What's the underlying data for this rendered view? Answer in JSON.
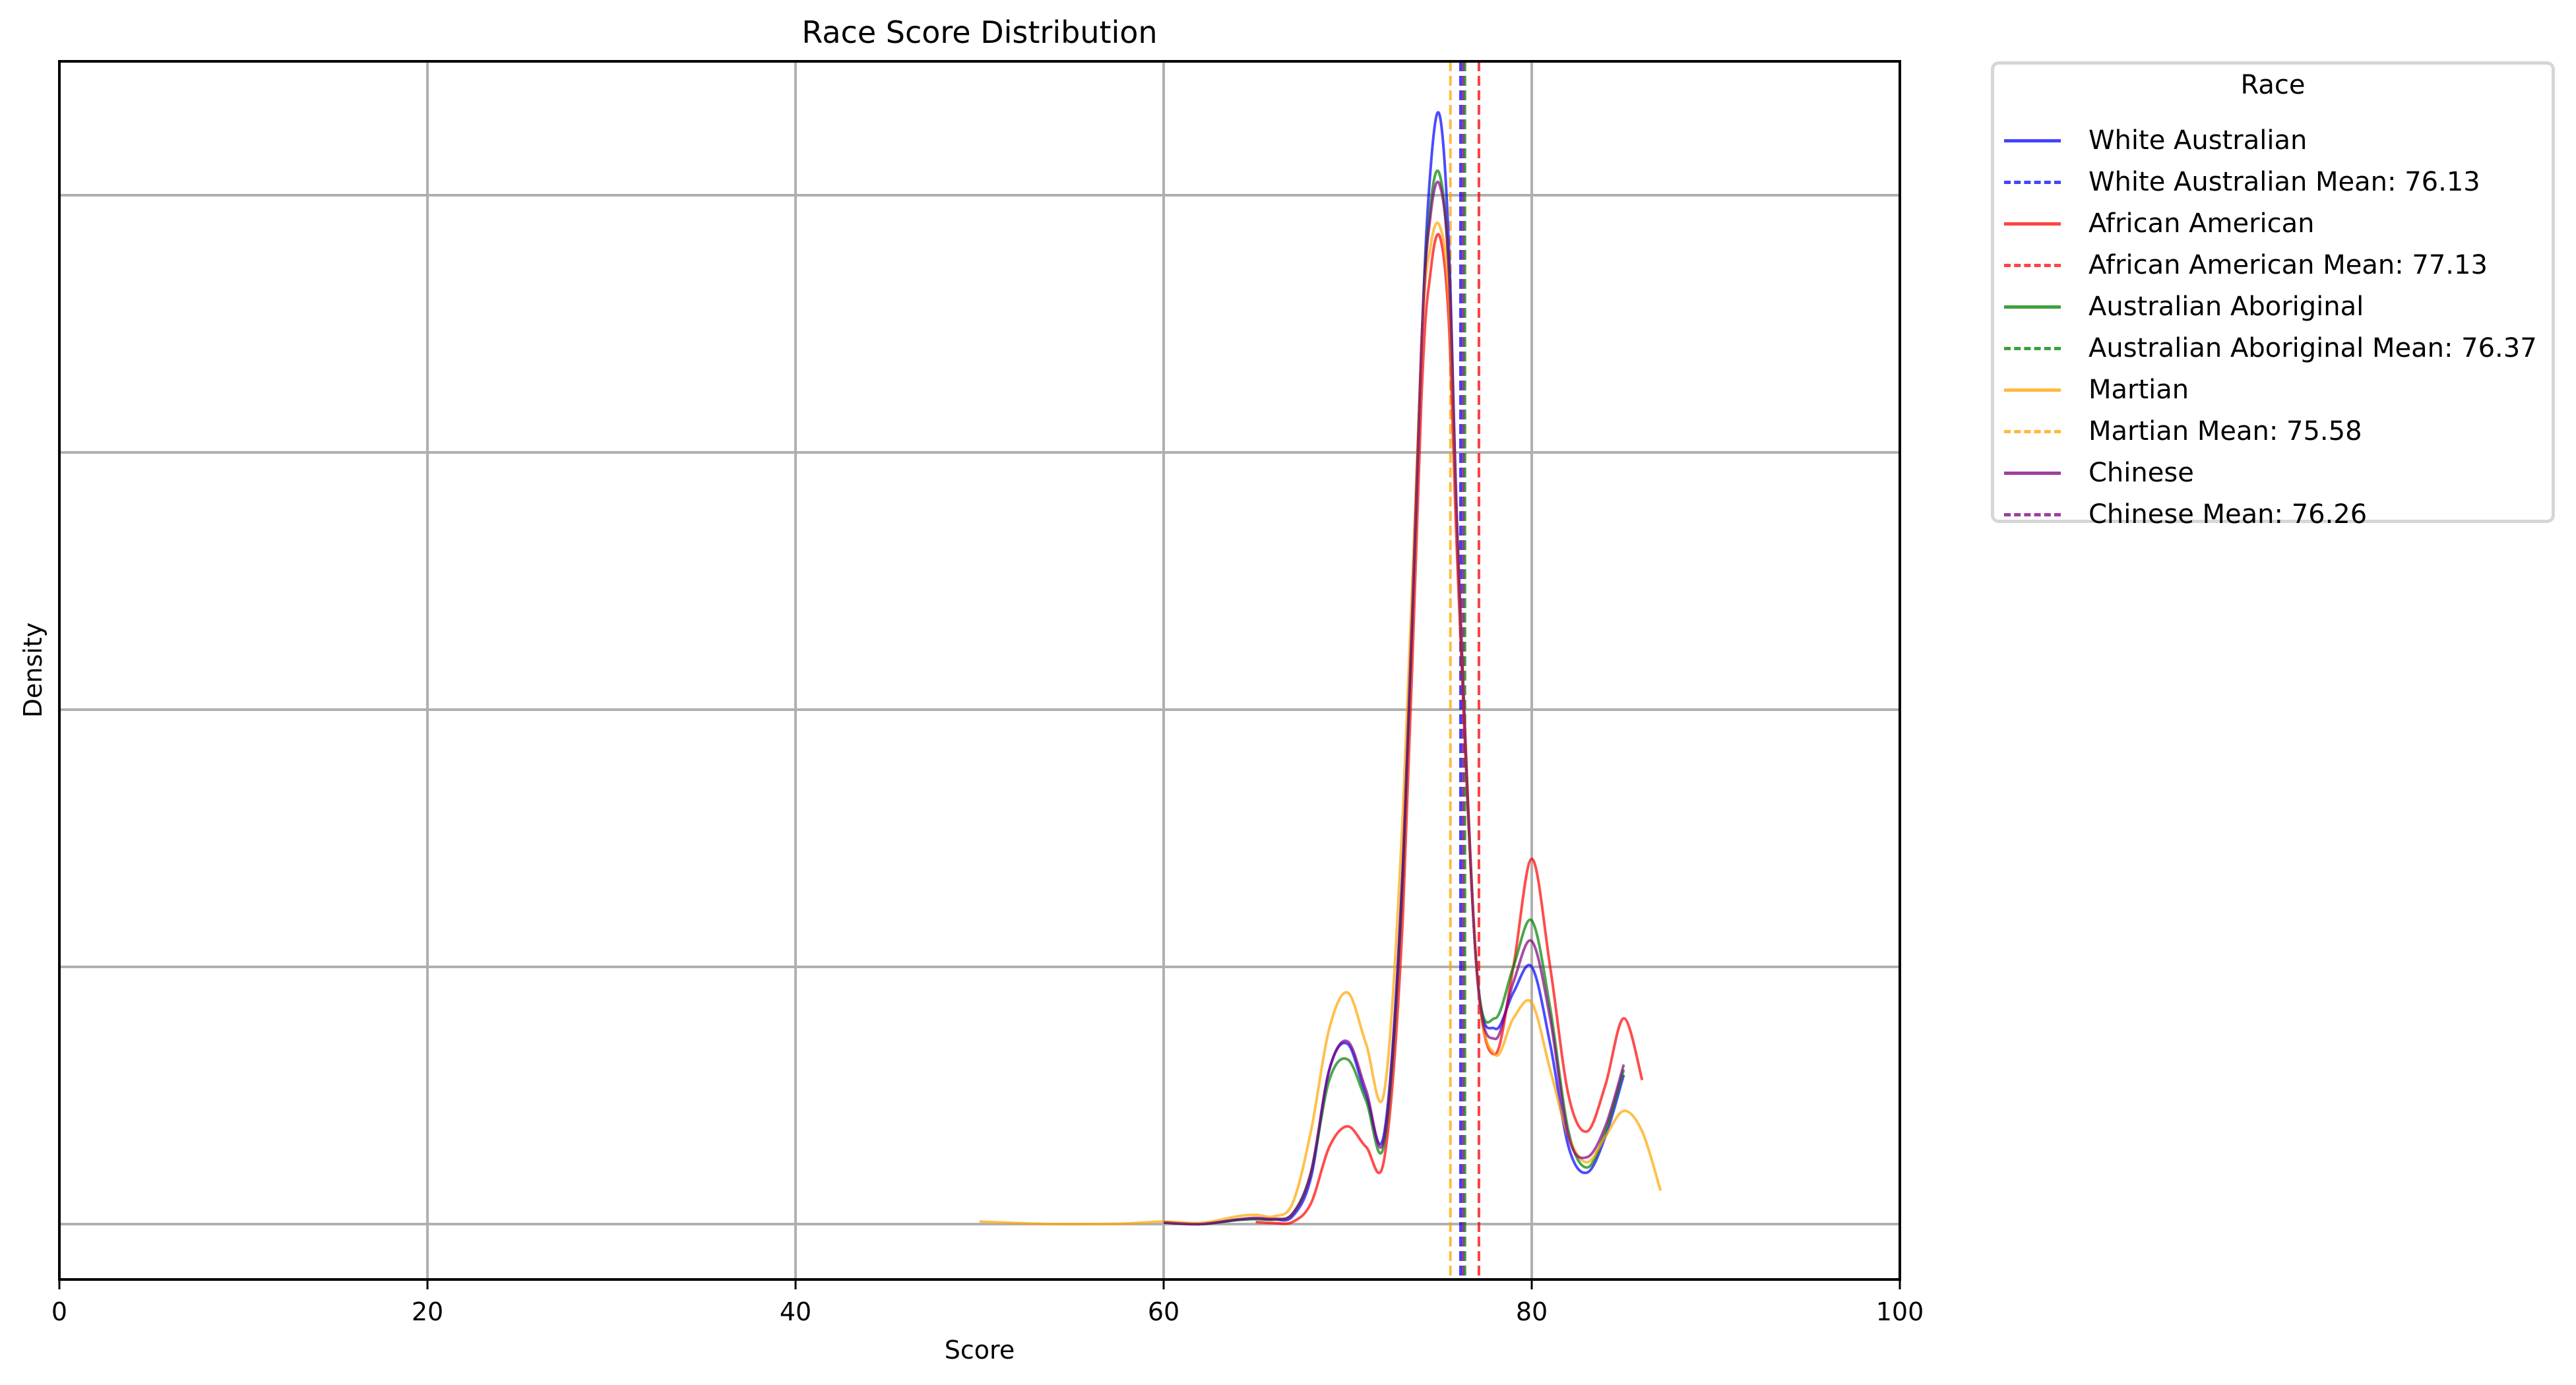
{
  "chart_data": {
    "type": "line",
    "title": "Race Score Distribution",
    "xlabel": "Score",
    "ylabel": "Density",
    "xlim": [
      0,
      100
    ],
    "ylim": [
      -0.004,
      0.232
    ],
    "xticks": [
      0,
      20,
      40,
      60,
      80,
      100
    ],
    "xtick_labels": [
      "0",
      "20",
      "40",
      "60",
      "80",
      "100"
    ],
    "yticks": [
      0,
      0.05,
      0.1,
      0.15,
      0.2
    ],
    "ytick_labels_visible": false,
    "grid": true,
    "legend": {
      "title": "Race",
      "position": "outside upper right"
    },
    "series": [
      {
        "name": "White Australian",
        "color": "#0000ff",
        "style": "solid",
        "mean": 76.13,
        "x": [
          60,
          62,
          64,
          65,
          66,
          67,
          68,
          69,
          70,
          71,
          72,
          73,
          74,
          74.5,
          75,
          75.5,
          76,
          77,
          78,
          79,
          80,
          81,
          82,
          83,
          84,
          85
        ],
        "y": [
          0.0003,
          0.0,
          0.0008,
          0.001,
          0.0009,
          0.0015,
          0.009,
          0.03,
          0.035,
          0.025,
          0.018,
          0.07,
          0.17,
          0.205,
          0.2155,
          0.19,
          0.13,
          0.05,
          0.038,
          0.045,
          0.05,
          0.035,
          0.015,
          0.01,
          0.017,
          0.029
        ]
      },
      {
        "name": "African American",
        "color": "#ff0000",
        "style": "solid",
        "mean": 77.13,
        "x": [
          65,
          66,
          67,
          68,
          69,
          70,
          71,
          72,
          73,
          74,
          74.5,
          75,
          75.5,
          76,
          77,
          78,
          79,
          80,
          81,
          82,
          83,
          84,
          85,
          86
        ],
        "y": [
          0.0004,
          0.0002,
          0.0004,
          0.004,
          0.015,
          0.019,
          0.015,
          0.013,
          0.06,
          0.16,
          0.185,
          0.192,
          0.175,
          0.125,
          0.05,
          0.033,
          0.05,
          0.071,
          0.05,
          0.025,
          0.018,
          0.027,
          0.04,
          0.028
        ]
      },
      {
        "name": "Australian Aboriginal",
        "color": "#008000",
        "style": "solid",
        "mean": 76.37,
        "x": [
          60,
          62,
          64,
          65,
          66,
          67,
          68,
          69,
          70,
          71,
          72,
          73,
          74,
          74.5,
          75,
          75.5,
          76,
          77,
          78,
          79,
          80,
          81,
          82,
          83,
          84,
          85
        ],
        "y": [
          0.0003,
          0.0,
          0.0008,
          0.001,
          0.0009,
          0.002,
          0.01,
          0.028,
          0.032,
          0.024,
          0.016,
          0.068,
          0.17,
          0.198,
          0.204,
          0.185,
          0.13,
          0.05,
          0.04,
          0.05,
          0.059,
          0.042,
          0.018,
          0.011,
          0.018,
          0.03
        ]
      },
      {
        "name": "Martian",
        "color": "#ffa500",
        "style": "solid",
        "mean": 75.58,
        "x": [
          50,
          52,
          54,
          56,
          58,
          60,
          62,
          64,
          65,
          66,
          67,
          68,
          69,
          70,
          71,
          72,
          73,
          74,
          74.5,
          75,
          75.5,
          76,
          77,
          78,
          79,
          80,
          81,
          82,
          83,
          84,
          85,
          86,
          87
        ],
        "y": [
          0.0005,
          0.0002,
          0.0,
          0.0,
          0.0001,
          0.0005,
          0.0002,
          0.0015,
          0.0018,
          0.0015,
          0.004,
          0.018,
          0.038,
          0.045,
          0.035,
          0.026,
          0.08,
          0.17,
          0.19,
          0.194,
          0.18,
          0.13,
          0.05,
          0.033,
          0.04,
          0.043,
          0.03,
          0.017,
          0.012,
          0.017,
          0.022,
          0.018,
          0.0065
        ]
      },
      {
        "name": "Chinese",
        "color": "#800080",
        "style": "solid",
        "mean": 76.26,
        "x": [
          60,
          62,
          64,
          65,
          66,
          67,
          68,
          69,
          70,
          71,
          72,
          73,
          74,
          74.5,
          75,
          75.5,
          76,
          77,
          78,
          79,
          80,
          81,
          82,
          83,
          84,
          85
        ],
        "y": [
          0.0003,
          0.0,
          0.0009,
          0.0012,
          0.001,
          0.002,
          0.01,
          0.03,
          0.0355,
          0.026,
          0.017,
          0.069,
          0.17,
          0.196,
          0.202,
          0.185,
          0.13,
          0.05,
          0.036,
          0.047,
          0.055,
          0.04,
          0.017,
          0.013,
          0.019,
          0.031
        ]
      }
    ],
    "mean_lines": [
      {
        "name": "White Australian Mean: 76.13",
        "x": 76.13,
        "color": "#0000ff",
        "style": "dashed"
      },
      {
        "name": "African American Mean: 77.13",
        "x": 77.13,
        "color": "#ff0000",
        "style": "dashed"
      },
      {
        "name": "Australian Aboriginal Mean: 76.37",
        "x": 76.37,
        "color": "#008000",
        "style": "dashed"
      },
      {
        "name": "Martian Mean: 75.58",
        "x": 75.58,
        "color": "#ffa500",
        "style": "dashed"
      },
      {
        "name": "Chinese Mean: 76.26",
        "x": 76.26,
        "color": "#800080",
        "style": "dashed"
      }
    ]
  },
  "legend": {
    "title": "Race",
    "items": [
      {
        "label": "White Australian",
        "color": "#4444ff",
        "style": "solid"
      },
      {
        "label": "White Australian Mean: 76.13",
        "color": "#4444ff",
        "style": "dashed"
      },
      {
        "label": "African American",
        "color": "#ff4444",
        "style": "solid"
      },
      {
        "label": "African American Mean: 77.13",
        "color": "#ff4444",
        "style": "dashed"
      },
      {
        "label": "Australian Aboriginal",
        "color": "#3f9f3f",
        "style": "solid"
      },
      {
        "label": "Australian Aboriginal Mean: 76.37",
        "color": "#3f9f3f",
        "style": "dashed"
      },
      {
        "label": "Martian",
        "color": "#ffb83f",
        "style": "solid"
      },
      {
        "label": "Martian Mean: 75.58",
        "color": "#ffb83f",
        "style": "dashed"
      },
      {
        "label": "Chinese",
        "color": "#9f3f9f",
        "style": "solid"
      },
      {
        "label": "Chinese Mean: 76.26",
        "color": "#9f3f9f",
        "style": "dashed"
      }
    ]
  }
}
